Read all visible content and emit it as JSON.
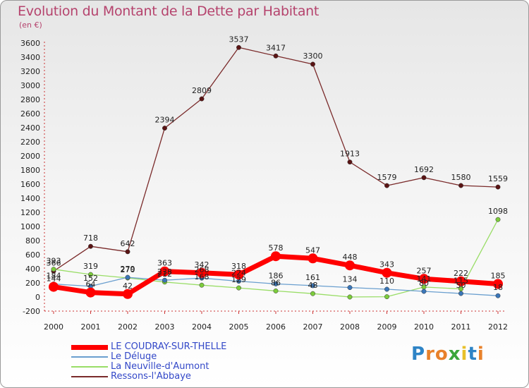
{
  "header": {
    "title": "Evolution du Montant de la Dette par Habitant",
    "subtitle": "(en €)"
  },
  "brand": {
    "letters": [
      "P",
      "r",
      "o",
      "x",
      "i",
      "t",
      "i"
    ],
    "colors": [
      "#2e84c6",
      "#e8812a",
      "#e8812a",
      "#3aa63a",
      "#e8c02a",
      "#2e84c6",
      "#e8812a"
    ]
  },
  "chart_data": {
    "type": "line",
    "title": "Evolution du Montant de la Dette par Habitant",
    "ylabel": "(en €)",
    "xlabel": "",
    "ylim": [
      -200,
      3600
    ],
    "yticks": [
      -200,
      0,
      200,
      400,
      600,
      800,
      1000,
      1200,
      1400,
      1600,
      1800,
      2000,
      2200,
      2400,
      2600,
      2800,
      3000,
      3200,
      3400,
      3600
    ],
    "categories": [
      "2000",
      "2001",
      "2002",
      "2003",
      "2004",
      "2005",
      "2006",
      "2007",
      "2008",
      "2009",
      "2010",
      "2011",
      "2012"
    ],
    "grid": false,
    "legend_position": "bottom-left",
    "series": [
      {
        "name": "Ressons-l'Abbaye",
        "color": "#7a2a2a",
        "marker": "#5a1414",
        "width": 1.3,
        "values": [
          366,
          718,
          642,
          2394,
          2809,
          3537,
          3417,
          3300,
          1913,
          1579,
          1692,
          1580,
          1559
        ],
        "labels": [
          "366",
          "718",
          "642",
          "2394",
          "2809",
          "3537",
          "3417",
          "3300",
          "1913",
          "1579",
          "1692",
          "1580",
          "1559"
        ]
      },
      {
        "name": "La Neuville-d'Aumont",
        "color": "#99dd66",
        "marker": "#7ccc3c",
        "width": 1.3,
        "values": [
          393,
          319,
          270,
          212,
          168,
          129,
          86,
          48,
          0,
          4,
          141,
          115,
          1098
        ],
        "labels": [
          "393",
          "319",
          "270",
          "212",
          "168",
          "129",
          "86",
          "48",
          "",
          "",
          "141",
          "115",
          "1098"
        ]
      },
      {
        "name": "Le Déluge",
        "color": "#6a9fcf",
        "marker": "#3a76b8",
        "width": 1.3,
        "values": [
          184,
          152,
          279,
          238,
          268,
          224,
          186,
          161,
          134,
          110,
          80,
          50,
          18
        ],
        "labels": [
          "184",
          "152",
          "279",
          "238",
          "268",
          "224",
          "186",
          "161",
          "134",
          "110",
          "80",
          "50",
          "18"
        ]
      },
      {
        "name": "LE COUDRAY-SUR-THELLE",
        "color": "#ff0000",
        "marker": "#ff0000",
        "width": 7,
        "values": [
          144,
          64,
          42,
          363,
          342,
          318,
          578,
          547,
          448,
          343,
          257,
          222,
          185
        ],
        "labels": [
          "144",
          "64",
          "42",
          "363",
          "342",
          "318",
          "578",
          "547",
          "448",
          "343",
          "257",
          "222",
          "185"
        ]
      }
    ]
  }
}
